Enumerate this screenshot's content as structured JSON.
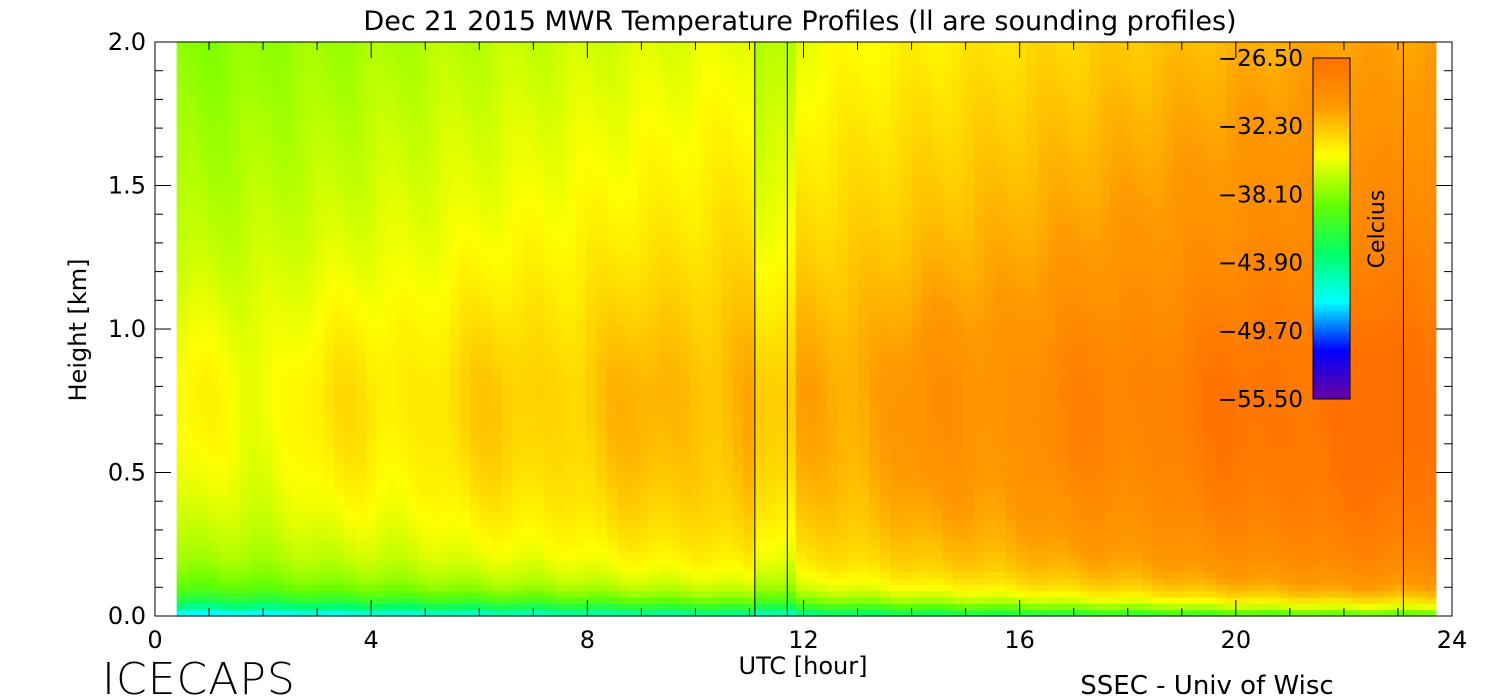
{
  "chart_data": {
    "type": "heatmap",
    "title": "Dec 21 2015 MWR Temperature Profiles (ll are sounding profiles)",
    "xlabel": "UTC [hour]",
    "ylabel": "Height [km]",
    "xlim": [
      0,
      24
    ],
    "ylim": [
      0,
      2
    ],
    "x_ticks": [
      "0",
      "4",
      "8",
      "12",
      "16",
      "20",
      "24"
    ],
    "y_ticks": [
      "0.0",
      "0.5",
      "1.0",
      "1.5",
      "2.0"
    ],
    "data_x_range": [
      0.4,
      23.7
    ],
    "sounding_profiles_utc": [
      11.1,
      11.7,
      23.1
    ],
    "colorbar": {
      "label": "Celcius",
      "range": [
        -55.5,
        -26.5
      ],
      "tick_labels": [
        "-26.50",
        "-32.30",
        "-38.10",
        "-43.90",
        "-49.70",
        "-55.50"
      ],
      "colors": [
        "#6a00a0",
        "#0000ff",
        "#00ffff",
        "#00ff66",
        "#66ff00",
        "#ffff00",
        "#ff9900",
        "#ff7000"
      ]
    },
    "approx_temperature_field": {
      "description_heights_km": [
        0.0,
        0.05,
        0.15,
        0.4,
        0.7,
        1.0,
        1.5,
        2.0
      ],
      "at_utc_1": [
        -50.0,
        -41.0,
        -38.0,
        -36.5,
        -36.0,
        -36.5,
        -38.0,
        -40.0
      ],
      "at_utc_10": [
        -48.0,
        -40.0,
        -35.5,
        -33.0,
        -32.5,
        -33.5,
        -35.5,
        -37.5
      ],
      "at_utc_22": [
        -46.0,
        -38.0,
        -31.0,
        -27.5,
        -28.0,
        -29.5,
        -32.0,
        -33.5
      ]
    }
  },
  "footer": {
    "left": "ICECAPS",
    "right": "SSEC - Univ of Wisc"
  }
}
